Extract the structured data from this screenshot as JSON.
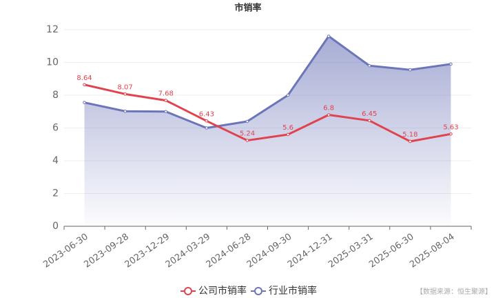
{
  "chart_data": {
    "type": "line",
    "title": "市销率",
    "categories": [
      "2023-06-30",
      "2023-09-28",
      "2023-12-29",
      "2024-03-29",
      "2024-06-28",
      "2024-09-30",
      "2024-12-31",
      "2025-03-31",
      "2025-06-30",
      "2025-08-04"
    ],
    "series": [
      {
        "name": "公司市销率",
        "color": "#e0434e",
        "values": [
          8.64,
          8.07,
          7.68,
          6.43,
          5.24,
          5.6,
          6.8,
          6.45,
          5.18,
          5.63
        ]
      },
      {
        "name": "行业市销率",
        "color": "#6b75b8",
        "values": [
          7.55,
          7.02,
          7.0,
          6.0,
          6.4,
          8.0,
          11.6,
          9.8,
          9.55,
          9.9
        ],
        "area": true
      }
    ],
    "ylim": [
      0,
      12
    ],
    "yticks": [
      0,
      2,
      4,
      6,
      8,
      10,
      12
    ],
    "grid": true,
    "source": "【数据来源：恒生聚源】"
  }
}
